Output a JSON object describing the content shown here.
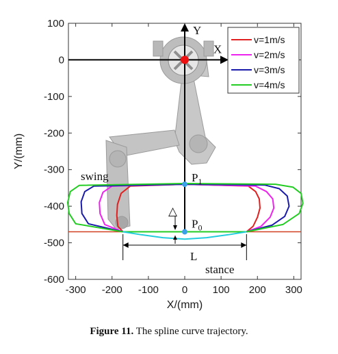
{
  "caption": {
    "label": "Figure 11.",
    "text": " The spline curve trajectory."
  },
  "chart_data": {
    "type": "line",
    "title": "",
    "xlabel": "X/(mm)",
    "ylabel": "Y/(mm)",
    "xlim": [
      -320,
      320
    ],
    "ylim": [
      -600,
      100
    ],
    "x_ticks": [
      -300,
      -200,
      -100,
      0,
      100,
      200,
      300
    ],
    "y_ticks": [
      100,
      0,
      -100,
      -200,
      -300,
      -400,
      -500,
      -600
    ],
    "grid": false,
    "legend_position": "top-right",
    "ground_y": -470,
    "series": [
      {
        "name": "v=1m/s",
        "color": "#e02020",
        "points": [
          [
            170,
            -470
          ],
          [
            188,
            -455
          ],
          [
            200,
            -430
          ],
          [
            207,
            -405
          ],
          [
            205,
            -380
          ],
          [
            195,
            -360
          ],
          [
            175,
            -345
          ],
          [
            0,
            -340
          ],
          [
            -150,
            -345
          ],
          [
            -175,
            -365
          ],
          [
            -185,
            -395
          ],
          [
            -187,
            -425
          ],
          [
            -184,
            -455
          ],
          [
            -170,
            -470
          ],
          [
            170,
            -470
          ]
        ]
      },
      {
        "name": "v=2m/s",
        "color": "#ee22ee",
        "points": [
          [
            170,
            -470
          ],
          [
            210,
            -455
          ],
          [
            235,
            -430
          ],
          [
            245,
            -405
          ],
          [
            242,
            -380
          ],
          [
            225,
            -360
          ],
          [
            195,
            -345
          ],
          [
            0,
            -340
          ],
          [
            -200,
            -345
          ],
          [
            -225,
            -362
          ],
          [
            -235,
            -390
          ],
          [
            -233,
            -420
          ],
          [
            -220,
            -450
          ],
          [
            -170,
            -470
          ],
          [
            170,
            -470
          ]
        ]
      },
      {
        "name": "v=3m/s",
        "color": "#1a1aaa",
        "points": [
          [
            170,
            -470
          ],
          [
            240,
            -452
          ],
          [
            275,
            -428
          ],
          [
            287,
            -400
          ],
          [
            282,
            -372
          ],
          [
            260,
            -352
          ],
          [
            220,
            -342
          ],
          [
            0,
            -340
          ],
          [
            -250,
            -345
          ],
          [
            -275,
            -360
          ],
          [
            -285,
            -388
          ],
          [
            -283,
            -420
          ],
          [
            -265,
            -448
          ],
          [
            -170,
            -470
          ],
          [
            170,
            -470
          ]
        ]
      },
      {
        "name": "v=4m/s",
        "color": "#22cc22",
        "points": [
          [
            170,
            -470
          ],
          [
            270,
            -450
          ],
          [
            315,
            -420
          ],
          [
            325,
            -392
          ],
          [
            320,
            -365
          ],
          [
            298,
            -348
          ],
          [
            250,
            -340
          ],
          [
            0,
            -338
          ],
          [
            -290,
            -343
          ],
          [
            -315,
            -360
          ],
          [
            -322,
            -390
          ],
          [
            -318,
            -420
          ],
          [
            -300,
            -448
          ],
          [
            -170,
            -470
          ],
          [
            170,
            -470
          ]
        ]
      },
      {
        "name": "",
        "color": "#22ccdd",
        "points": [
          [
            -170,
            -470
          ],
          [
            -120,
            -478
          ],
          [
            -60,
            -486
          ],
          [
            0,
            -490
          ],
          [
            60,
            -486
          ],
          [
            120,
            -478
          ],
          [
            170,
            -470
          ]
        ]
      }
    ],
    "annotations": {
      "axis_x_label": "X",
      "axis_y_label": "Y",
      "swing": "swing",
      "stance": "stance",
      "L": "L",
      "delta": "△",
      "P1": {
        "base": "P",
        "sub": "1",
        "x": 0,
        "y": -340
      },
      "P0": {
        "base": "P",
        "sub": "0",
        "x": 0,
        "y": -470
      },
      "origin": {
        "x": 0,
        "y": 0
      }
    }
  }
}
